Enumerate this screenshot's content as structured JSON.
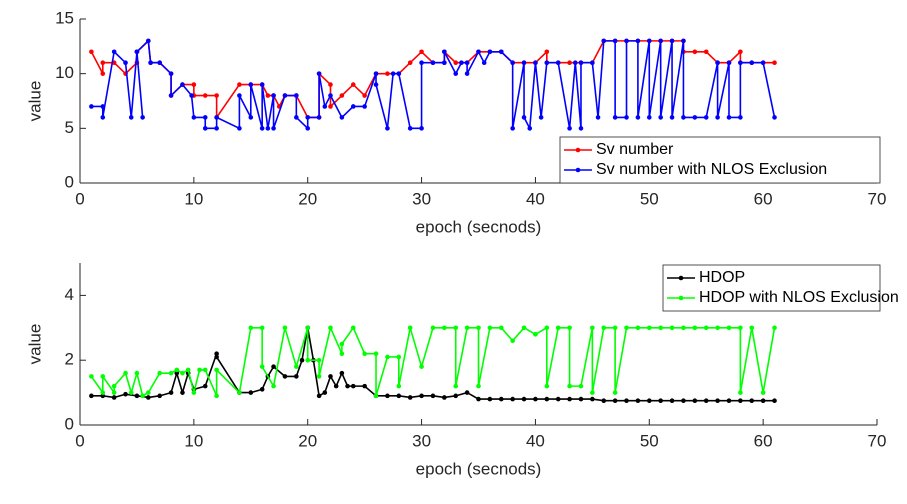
{
  "chart_data": [
    {
      "type": "line",
      "xlabel": "epoch (secnods)",
      "ylabel": "value",
      "xlim": [
        0,
        70
      ],
      "xticks": [
        0,
        10,
        20,
        30,
        40,
        50,
        60,
        70
      ],
      "ylim": [
        0,
        15
      ],
      "yticks": [
        0,
        5,
        10,
        15
      ],
      "legend": "lower right",
      "series": [
        {
          "name": "Sv number",
          "color": "#ff0000",
          "x": [
            1,
            2,
            2,
            3,
            4,
            5,
            5,
            6,
            6.2,
            7,
            8,
            8,
            9,
            10,
            10,
            11,
            12,
            12,
            14,
            15,
            16,
            16.5,
            17,
            17.5,
            18,
            19,
            20,
            21,
            21,
            22,
            22,
            23,
            24,
            25,
            26,
            27,
            28,
            29,
            30,
            31,
            32,
            32,
            33,
            34,
            35,
            36,
            37,
            38,
            39,
            40,
            41,
            41,
            42,
            43,
            44,
            45,
            46,
            47,
            48,
            49,
            50,
            51,
            52,
            53,
            53,
            54,
            55,
            56,
            57,
            58,
            58,
            59,
            60,
            61
          ],
          "values": [
            12,
            10,
            11,
            11,
            10,
            11,
            12,
            13,
            11,
            11,
            10,
            8,
            9,
            9,
            8,
            8,
            8,
            6,
            9,
            9,
            9,
            8,
            8,
            7,
            8,
            8,
            6,
            6,
            10,
            9,
            7,
            8,
            9,
            8,
            10,
            10,
            10,
            11,
            12,
            11,
            11,
            12,
            11,
            11,
            12,
            12,
            12,
            11,
            11,
            11,
            12,
            11,
            11,
            11,
            11,
            11,
            13,
            13,
            13,
            13,
            13,
            13,
            13,
            13,
            12,
            12,
            12,
            11,
            11,
            12,
            11,
            11,
            11,
            11
          ]
        },
        {
          "name": "Sv number with NLOS Exclusion",
          "color": "#0000ff",
          "x": [
            1,
            2,
            2,
            3,
            4,
            4.5,
            5,
            5.5,
            5,
            6,
            6.2,
            7,
            8,
            8,
            9,
            9.8,
            10,
            11,
            11,
            12,
            12,
            14,
            14,
            15,
            15,
            16,
            16,
            16.5,
            17,
            17,
            18,
            19,
            19,
            20,
            20,
            21,
            21,
            21.5,
            22,
            23,
            24,
            25,
            26,
            26,
            27,
            27.5,
            28,
            29,
            30,
            30,
            31,
            32,
            32,
            33,
            33.5,
            34,
            34,
            35,
            35.5,
            36,
            37,
            38,
            38,
            39,
            39,
            39.5,
            40,
            40.5,
            41,
            42,
            43,
            43.5,
            44,
            44,
            45,
            45.5,
            46,
            47,
            47,
            48,
            48,
            49,
            49,
            50,
            50,
            51,
            51,
            52,
            52,
            53,
            53,
            54,
            55,
            56,
            56,
            57,
            57,
            58,
            58,
            59,
            60,
            61
          ],
          "values": [
            7,
            7,
            6,
            12,
            11,
            6,
            12,
            6,
            12,
            13,
            11,
            11,
            10,
            8,
            9,
            8,
            6,
            6,
            5,
            5,
            6,
            5,
            8,
            6,
            9,
            5,
            9,
            5,
            8,
            5,
            8,
            8,
            6,
            5,
            6,
            6,
            10,
            7,
            8,
            6,
            7,
            7,
            10,
            9,
            5,
            10,
            10,
            5,
            5,
            11,
            11,
            11,
            12,
            10,
            11,
            11,
            10,
            12,
            11,
            12,
            12,
            11,
            5,
            11,
            6,
            5,
            11,
            6,
            11,
            11,
            5,
            11,
            5,
            11,
            11,
            6,
            13,
            13,
            6,
            6,
            13,
            13,
            6,
            13,
            6,
            13,
            6,
            13,
            6,
            13,
            6,
            6,
            6,
            11,
            6,
            11,
            6,
            6,
            11,
            11,
            11,
            6
          ]
        }
      ]
    },
    {
      "type": "line",
      "xlabel": "epoch (secnods)",
      "ylabel": "value",
      "xlim": [
        0,
        70
      ],
      "xticks": [
        0,
        10,
        20,
        30,
        40,
        50,
        60,
        70
      ],
      "ylim": [
        0,
        5
      ],
      "yticks": [
        0,
        2,
        4
      ],
      "legend": "upper right",
      "series": [
        {
          "name": "HDOP",
          "color": "#000000",
          "x": [
            1,
            2,
            3,
            4,
            5,
            6,
            7,
            8,
            8.5,
            9,
            9.5,
            10,
            11,
            12,
            12,
            14,
            15,
            16,
            16.5,
            17,
            18,
            19,
            19.5,
            20,
            20.5,
            21,
            21.5,
            22,
            22.5,
            23,
            23.5,
            24,
            25,
            26,
            27,
            28,
            29,
            30,
            31,
            32,
            33,
            34,
            35,
            36,
            37,
            38,
            39,
            40,
            41,
            42,
            43,
            44,
            45,
            46,
            47,
            48,
            49,
            50,
            51,
            52,
            53,
            54,
            55,
            56,
            57,
            58,
            59,
            60,
            61
          ],
          "values": [
            0.9,
            0.9,
            0.85,
            0.95,
            0.9,
            0.85,
            0.9,
            1.0,
            1.6,
            1.0,
            1.6,
            1.1,
            1.2,
            2.2,
            2.1,
            1.0,
            1.0,
            1.1,
            1.5,
            1.8,
            1.5,
            1.5,
            2.0,
            3.0,
            2.0,
            0.9,
            1.0,
            1.5,
            1.2,
            1.6,
            1.2,
            1.2,
            1.2,
            0.9,
            0.9,
            0.9,
            0.85,
            0.9,
            0.9,
            0.85,
            0.9,
            1.0,
            0.8,
            0.8,
            0.8,
            0.8,
            0.8,
            0.8,
            0.8,
            0.8,
            0.8,
            0.8,
            0.8,
            0.75,
            0.75,
            0.75,
            0.75,
            0.75,
            0.75,
            0.75,
            0.75,
            0.75,
            0.75,
            0.75,
            0.75,
            0.75,
            0.75,
            0.75,
            0.75
          ]
        },
        {
          "name": "HDOP with NLOS Exclusion",
          "color": "#00ff00",
          "x": [
            1,
            2,
            2,
            3,
            3,
            4,
            4.5,
            5,
            5.5,
            6,
            7,
            8,
            8.5,
            9,
            9.5,
            10,
            10.5,
            11,
            12,
            12,
            14,
            15,
            16,
            16,
            17,
            18,
            19,
            20,
            20,
            21,
            21,
            22,
            23,
            23,
            24,
            25,
            26,
            26,
            27,
            28,
            28,
            29,
            30,
            31,
            32,
            33,
            33,
            34,
            35,
            35,
            36,
            37,
            38,
            39,
            40,
            40,
            41,
            41,
            42,
            43,
            43,
            44,
            45,
            45,
            46,
            47,
            47,
            48,
            49,
            50,
            51,
            52,
            53,
            54,
            55,
            56,
            57,
            58,
            58,
            59,
            60,
            61
          ],
          "values": [
            1.5,
            1.0,
            1.5,
            1.0,
            1.2,
            1.6,
            1.0,
            1.6,
            0.9,
            1.0,
            1.6,
            1.6,
            1.7,
            1.6,
            1.7,
            1.0,
            1.7,
            1.7,
            0.9,
            1.7,
            1.0,
            3.0,
            3.0,
            1.8,
            1.2,
            3.0,
            1.8,
            3.0,
            2.0,
            2.0,
            1.5,
            3.0,
            2.2,
            2.5,
            3.0,
            2.2,
            2.2,
            0.9,
            2.1,
            2.1,
            1.2,
            3.0,
            1.8,
            3.0,
            3.0,
            3.0,
            1.2,
            3.0,
            3.0,
            1.2,
            3.0,
            3.0,
            2.6,
            3.0,
            2.8,
            2.8,
            3.0,
            1.2,
            3.0,
            3.0,
            1.2,
            1.2,
            3.0,
            1.0,
            3.0,
            3.0,
            1.0,
            3.0,
            3.0,
            3.0,
            3.0,
            3.0,
            3.0,
            3.0,
            3.0,
            3.0,
            3.0,
            3.0,
            1.0,
            3.0,
            1.0,
            3.0
          ]
        }
      ]
    }
  ]
}
